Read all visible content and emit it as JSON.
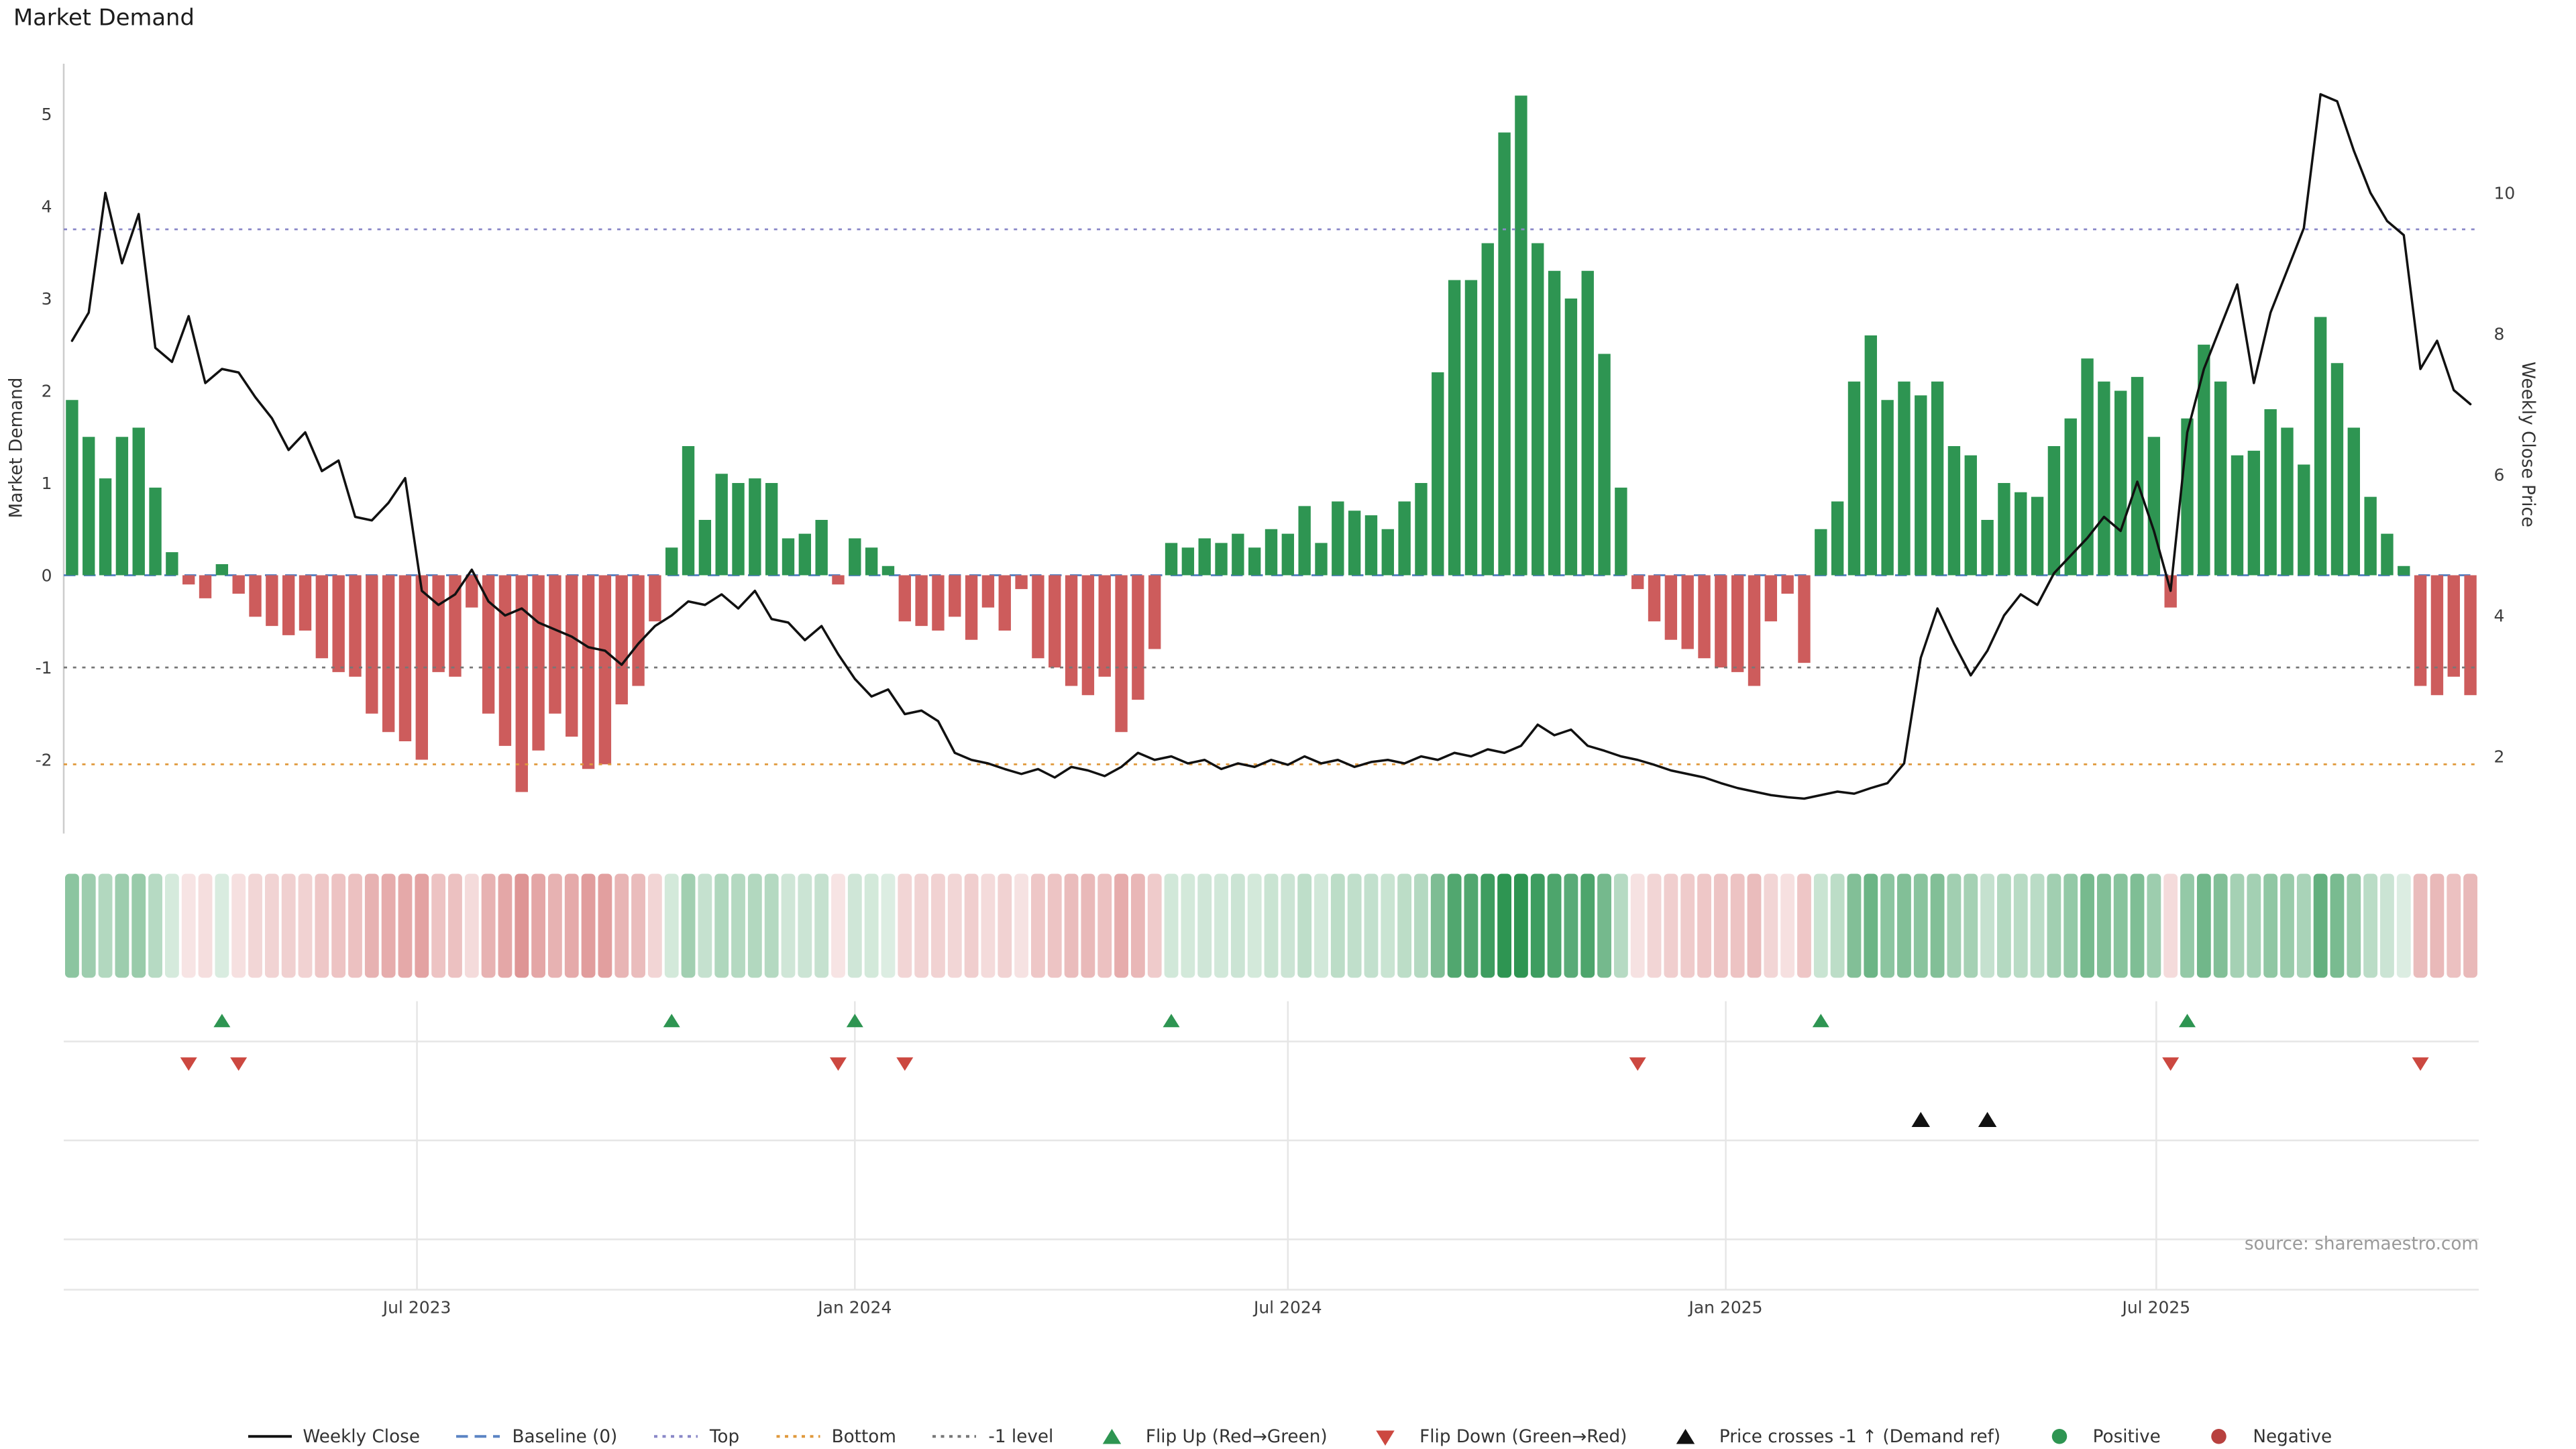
{
  "title": "Market Demand",
  "source": "source: sharemaestro.com",
  "axes": {
    "left_label": "Market Demand",
    "right_label": "Weekly Close Price",
    "left_ticks": [
      5,
      4,
      3,
      2,
      1,
      0,
      -1,
      -2
    ],
    "right_ticks": [
      10,
      8,
      6,
      4,
      2
    ],
    "x_ticks": [
      {
        "label": "Jul 2023",
        "week": 20.71
      },
      {
        "label": "Jan 2024",
        "week": 47.0
      },
      {
        "label": "Jul 2024",
        "week": 73.0
      },
      {
        "label": "Jan 2025",
        "week": 99.29
      },
      {
        "label": "Jul 2025",
        "week": 125.14
      }
    ]
  },
  "colors": {
    "positive": "#2e9552",
    "negative": "#cd5c5c",
    "price_line": "#111111",
    "baseline": "#5b84c4",
    "top_line": "#8a88c8",
    "bottom_line": "#e0993c",
    "minus1_line": "#777777",
    "grid": "#e6e6e6",
    "tick_text": "#3d3d3d"
  },
  "legend": [
    {
      "label": "Weekly Close",
      "swatch": "line",
      "color": "#111111"
    },
    {
      "label": "Baseline (0)",
      "swatch": "dash",
      "color": "#5b84c4"
    },
    {
      "label": "Top",
      "swatch": "dot",
      "color": "#8a88c8"
    },
    {
      "label": "Bottom",
      "swatch": "dot",
      "color": "#e0993c"
    },
    {
      "label": "-1 level",
      "swatch": "dot",
      "color": "#777777"
    },
    {
      "label": "Flip Up (Red→Green)",
      "swatch": "tri-up",
      "color": "#2e9552"
    },
    {
      "label": "Flip Down (Green→Red)",
      "swatch": "tri-down",
      "color": "#cc4840"
    },
    {
      "label": "Price crosses -1 ↑ (Demand ref)",
      "swatch": "tri-up",
      "color": "#111111"
    },
    {
      "label": "Positive",
      "swatch": "circle",
      "color": "#2e9552"
    },
    {
      "label": "Negative",
      "swatch": "circle",
      "color": "#b8413f"
    }
  ],
  "chart_data": {
    "type": "bar+line",
    "x_start_date": "2023-02-06",
    "x_step": "1 week",
    "n_points": 145,
    "left_ylim": [
      -2.8,
      5.55
    ],
    "right_ylim": [
      0.9,
      11.83
    ],
    "grid": "off in main panel, faint grid in marker panel",
    "legend_position": "bottom center",
    "heat_strip": "one cell per week below main chart; green when demand positive, red when negative, color intensity proportional to |demand|",
    "reference_lines": [
      {
        "name": "Baseline (0)",
        "value": 0,
        "color": "#5b84c4",
        "style": "dashed"
      },
      {
        "name": "Top",
        "value": 3.75,
        "color": "#8a88c8",
        "style": "dotted"
      },
      {
        "name": "-1 level",
        "value": -1,
        "color": "#777777",
        "style": "dotted"
      },
      {
        "name": "Bottom",
        "value": -2.05,
        "color": "#e0993c",
        "style": "dotted"
      }
    ],
    "series": [
      {
        "name": "Market Demand",
        "type": "bar",
        "axis": "left",
        "values": [
          1.9,
          1.5,
          1.05,
          1.5,
          1.6,
          0.95,
          0.25,
          -0.1,
          -0.25,
          0.12,
          -0.2,
          -0.45,
          -0.55,
          -0.65,
          -0.6,
          -0.9,
          -1.05,
          -1.1,
          -1.5,
          -1.7,
          -1.8,
          -2.0,
          -1.05,
          -1.1,
          -0.35,
          -1.5,
          -1.85,
          -2.35,
          -1.9,
          -1.5,
          -1.75,
          -2.1,
          -2.05,
          -1.4,
          -1.2,
          -0.5,
          0.3,
          1.4,
          0.6,
          1.1,
          1.0,
          1.05,
          1.0,
          0.4,
          0.45,
          0.6,
          -0.1,
          0.4,
          0.3,
          0.1,
          -0.5,
          -0.55,
          -0.6,
          -0.45,
          -0.7,
          -0.35,
          -0.6,
          -0.15,
          -0.9,
          -1.0,
          -1.2,
          -1.3,
          -1.1,
          -1.7,
          -1.35,
          -0.8,
          0.35,
          0.3,
          0.4,
          0.35,
          0.45,
          0.3,
          0.5,
          0.45,
          0.75,
          0.35,
          0.8,
          0.7,
          0.65,
          0.5,
          0.8,
          1.0,
          2.2,
          3.2,
          3.2,
          3.6,
          4.8,
          5.2,
          3.6,
          3.3,
          3.0,
          3.3,
          2.4,
          0.95,
          -0.15,
          -0.5,
          -0.7,
          -0.8,
          -0.9,
          -1.0,
          -1.05,
          -1.2,
          -0.5,
          -0.2,
          -0.95,
          0.5,
          0.8,
          2.1,
          2.6,
          1.9,
          2.1,
          1.95,
          2.1,
          1.4,
          1.3,
          0.6,
          1.0,
          0.9,
          0.85,
          1.4,
          1.7,
          2.35,
          2.1,
          2.0,
          2.15,
          1.5,
          -0.35,
          1.7,
          2.5,
          2.1,
          1.3,
          1.35,
          1.8,
          1.6,
          1.2,
          2.8,
          2.3,
          1.6,
          0.85,
          0.45,
          0.1,
          -1.2,
          -1.3,
          -1.1,
          -1.3
        ]
      },
      {
        "name": "Weekly Close",
        "type": "line",
        "axis": "right",
        "values": [
          7.9,
          8.3,
          10.0,
          9.0,
          9.7,
          7.8,
          7.6,
          8.25,
          7.3,
          7.5,
          7.45,
          7.1,
          6.8,
          6.35,
          6.6,
          6.05,
          6.2,
          5.4,
          5.35,
          5.6,
          5.95,
          4.35,
          4.15,
          4.3,
          4.65,
          4.2,
          4.0,
          4.1,
          3.9,
          3.8,
          3.7,
          3.55,
          3.5,
          3.3,
          3.6,
          3.85,
          4.0,
          4.2,
          4.15,
          4.3,
          4.1,
          4.35,
          3.95,
          3.9,
          3.65,
          3.85,
          3.45,
          3.1,
          2.85,
          2.95,
          2.6,
          2.65,
          2.5,
          2.05,
          1.95,
          1.9,
          1.82,
          1.75,
          1.82,
          1.7,
          1.85,
          1.8,
          1.72,
          1.85,
          2.05,
          1.95,
          2.0,
          1.9,
          1.95,
          1.82,
          1.9,
          1.85,
          1.95,
          1.88,
          2.0,
          1.9,
          1.95,
          1.85,
          1.92,
          1.95,
          1.9,
          2.0,
          1.95,
          2.05,
          2.0,
          2.1,
          2.05,
          2.15,
          2.45,
          2.3,
          2.38,
          2.15,
          2.08,
          2.0,
          1.95,
          1.88,
          1.8,
          1.75,
          1.7,
          1.62,
          1.55,
          1.5,
          1.45,
          1.42,
          1.4,
          1.45,
          1.5,
          1.47,
          1.55,
          1.62,
          1.9,
          3.4,
          4.1,
          3.6,
          3.15,
          3.5,
          4.0,
          4.3,
          4.15,
          4.6,
          4.85,
          5.1,
          5.4,
          5.2,
          5.9,
          5.2,
          4.35,
          6.6,
          7.5,
          8.1,
          8.7,
          7.3,
          8.3,
          8.9,
          9.5,
          11.4,
          11.3,
          10.6,
          10.0,
          9.6,
          9.4,
          7.5,
          7.9,
          7.2,
          7.0
        ]
      }
    ],
    "markers": {
      "flip_up": {
        "label": "Flip Up (Red→Green)",
        "weeks": [
          9,
          36,
          47,
          66,
          105,
          127
        ],
        "color": "#2e9552"
      },
      "flip_down": {
        "label": "Flip Down (Green→Red)",
        "weeks": [
          7,
          10,
          46,
          50,
          94,
          126,
          141
        ],
        "color": "#cc4840"
      },
      "price_cross_minus1": {
        "label": "Price crosses -1 ↑ (Demand ref)",
        "weeks": [
          111,
          115
        ],
        "color": "#111111"
      }
    }
  }
}
